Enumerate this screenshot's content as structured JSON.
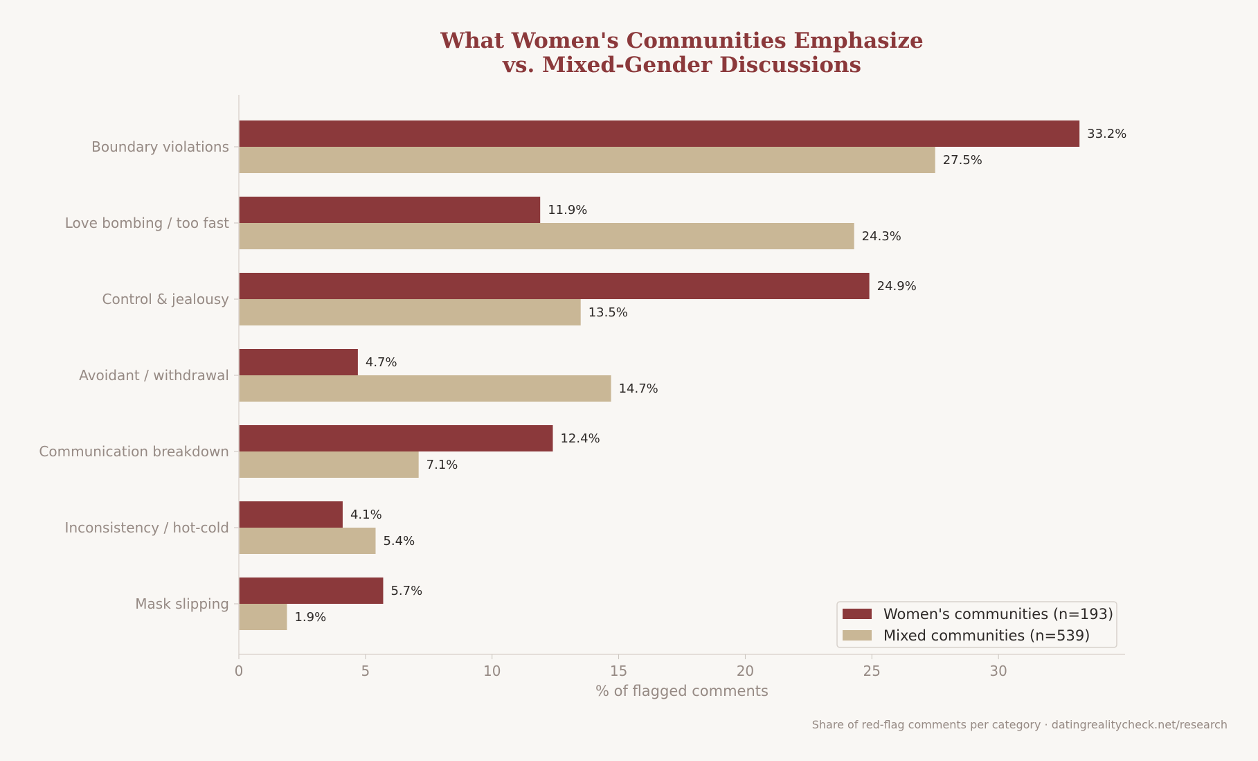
{
  "chart_data": {
    "type": "bar",
    "orientation": "horizontal",
    "title": "What Women's Communities Emphasize",
    "subtitle": "vs. Mixed-Gender Discussions",
    "xlabel": "% of flagged comments",
    "ylabel": "",
    "xlim": [
      0,
      35
    ],
    "xticks": [
      0,
      5,
      10,
      15,
      20,
      25,
      30
    ],
    "grid": false,
    "legend_position": "bottom-right",
    "value_suffix": "%",
    "categories": [
      "Boundary violations",
      "Love bombing / too fast",
      "Control & jealousy",
      "Avoidant / withdrawal",
      "Communication breakdown",
      "Inconsistency / hot-cold",
      "Mask slipping"
    ],
    "series": [
      {
        "name": "Women's communities (n=193)",
        "color": "#8b393b",
        "values": [
          33.2,
          11.9,
          24.9,
          4.7,
          12.4,
          4.1,
          5.7
        ]
      },
      {
        "name": "Mixed communities (n=539)",
        "color": "#c9b796",
        "values": [
          27.5,
          24.3,
          13.5,
          14.7,
          7.1,
          5.4,
          1.9
        ]
      }
    ],
    "caption": "Share of red-flag comments per category · datingrealitycheck.net/research"
  }
}
